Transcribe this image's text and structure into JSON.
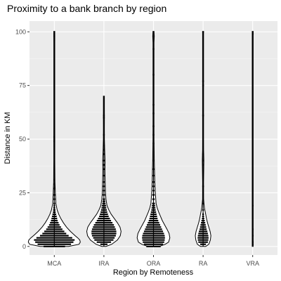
{
  "chart_data": {
    "type": "violin",
    "title": "Proximity to a bank branch by region",
    "xlabel": "Region by Remoteness",
    "ylabel": "Distance in KM",
    "categories": [
      "MCA",
      "IRA",
      "ORA",
      "RA",
      "VRA"
    ],
    "y_ticks": [
      0,
      25,
      50,
      75,
      100
    ],
    "y_tick_labels": [
      "0",
      "25",
      "50",
      "75",
      "100"
    ],
    "ylim": [
      -4,
      105
    ],
    "grid": true,
    "legend": "none",
    "colors": {
      "panel": "#ebebeb",
      "grid_major": "#ffffff",
      "grid_minor": "#f5f5f5",
      "violin_fill": "#ffffff",
      "outline": "#000000",
      "dots": "#000000",
      "tick_text": "#4d4d4d"
    },
    "series": [
      {
        "category": "MCA",
        "max": 100,
        "density": [
          [
            0,
            0.55
          ],
          [
            1,
            0.95
          ],
          [
            2,
            1.0
          ],
          [
            3,
            0.98
          ],
          [
            4,
            0.9
          ],
          [
            5,
            0.8
          ],
          [
            7,
            0.62
          ],
          [
            9,
            0.47
          ],
          [
            11,
            0.35
          ],
          [
            13,
            0.25
          ],
          [
            15,
            0.17
          ],
          [
            17,
            0.11
          ],
          [
            20,
            0.06
          ],
          [
            25,
            0.04
          ],
          [
            30,
            0.025
          ],
          [
            40,
            0.015
          ],
          [
            50,
            0.02
          ],
          [
            60,
            0.01
          ],
          [
            80,
            0.01
          ],
          [
            95,
            0.01
          ],
          [
            98,
            0.02
          ],
          [
            100,
            0.01
          ]
        ],
        "dot_bins": [
          [
            0,
            0.45
          ],
          [
            1,
            0.7
          ],
          [
            2,
            0.8
          ],
          [
            3,
            0.85
          ],
          [
            4,
            0.75
          ],
          [
            5,
            0.6
          ],
          [
            6,
            0.5
          ],
          [
            7,
            0.42
          ],
          [
            8,
            0.34
          ],
          [
            9,
            0.28
          ],
          [
            10,
            0.22
          ],
          [
            11,
            0.18
          ],
          [
            12,
            0.14
          ],
          [
            13,
            0.12
          ],
          [
            14,
            0.1
          ],
          [
            15,
            0.08
          ],
          [
            16,
            0.06
          ],
          [
            17,
            0.05
          ],
          [
            18,
            0.04
          ],
          [
            19,
            0.03
          ],
          [
            20,
            0.03
          ],
          [
            22,
            0.02
          ],
          [
            24,
            0.02
          ],
          [
            27,
            0.02
          ],
          [
            29,
            0.03
          ],
          [
            31,
            0.02
          ],
          [
            49,
            0.02
          ],
          [
            51,
            0.02
          ],
          [
            98,
            0.02
          ],
          [
            99,
            0.03
          ],
          [
            100,
            0.02
          ]
        ]
      },
      {
        "category": "IRA",
        "max": 70,
        "density": [
          [
            0,
            0.08
          ],
          [
            1,
            0.3
          ],
          [
            3,
            0.52
          ],
          [
            5,
            0.63
          ],
          [
            7,
            0.66
          ],
          [
            9,
            0.62
          ],
          [
            11,
            0.52
          ],
          [
            13,
            0.4
          ],
          [
            15,
            0.28
          ],
          [
            17,
            0.19
          ],
          [
            19,
            0.12
          ],
          [
            22,
            0.08
          ],
          [
            25,
            0.06
          ],
          [
            30,
            0.05
          ],
          [
            35,
            0.04
          ],
          [
            40,
            0.045
          ],
          [
            45,
            0.03
          ],
          [
            50,
            0.02
          ],
          [
            55,
            0.015
          ],
          [
            60,
            0.02
          ],
          [
            65,
            0.01
          ],
          [
            70,
            0.005
          ]
        ],
        "dot_bins": [
          [
            1,
            0.15
          ],
          [
            2,
            0.3
          ],
          [
            3,
            0.4
          ],
          [
            4,
            0.45
          ],
          [
            5,
            0.5
          ],
          [
            6,
            0.52
          ],
          [
            7,
            0.52
          ],
          [
            8,
            0.5
          ],
          [
            9,
            0.46
          ],
          [
            10,
            0.42
          ],
          [
            11,
            0.36
          ],
          [
            12,
            0.3
          ],
          [
            13,
            0.25
          ],
          [
            14,
            0.2
          ],
          [
            15,
            0.17
          ],
          [
            16,
            0.14
          ],
          [
            17,
            0.12
          ],
          [
            18,
            0.1
          ],
          [
            19,
            0.09
          ],
          [
            20,
            0.07
          ],
          [
            21,
            0.06
          ],
          [
            22,
            0.05
          ],
          [
            24,
            0.05
          ],
          [
            26,
            0.04
          ],
          [
            28,
            0.04
          ],
          [
            30,
            0.03
          ],
          [
            33,
            0.03
          ],
          [
            36,
            0.03
          ],
          [
            38,
            0.04
          ],
          [
            40,
            0.04
          ],
          [
            43,
            0.03
          ],
          [
            45,
            0.03
          ],
          [
            47,
            0.02
          ],
          [
            52,
            0.02
          ],
          [
            60,
            0.03
          ],
          [
            61,
            0.02
          ]
        ]
      },
      {
        "category": "ORA",
        "max": 100,
        "density": [
          [
            0,
            0.22
          ],
          [
            1,
            0.45
          ],
          [
            2,
            0.58
          ],
          [
            4,
            0.63
          ],
          [
            6,
            0.6
          ],
          [
            8,
            0.52
          ],
          [
            10,
            0.43
          ],
          [
            12,
            0.34
          ],
          [
            14,
            0.27
          ],
          [
            16,
            0.2
          ],
          [
            18,
            0.14
          ],
          [
            20,
            0.1
          ],
          [
            25,
            0.07
          ],
          [
            30,
            0.05
          ],
          [
            35,
            0.04
          ],
          [
            40,
            0.03
          ],
          [
            50,
            0.02
          ],
          [
            60,
            0.015
          ],
          [
            80,
            0.01
          ],
          [
            95,
            0.01
          ],
          [
            98,
            0.03
          ],
          [
            100,
            0.015
          ]
        ],
        "dot_bins": [
          [
            0,
            0.3
          ],
          [
            1,
            0.4
          ],
          [
            2,
            0.45
          ],
          [
            3,
            0.47
          ],
          [
            4,
            0.48
          ],
          [
            5,
            0.47
          ],
          [
            6,
            0.44
          ],
          [
            7,
            0.4
          ],
          [
            8,
            0.36
          ],
          [
            9,
            0.32
          ],
          [
            10,
            0.28
          ],
          [
            11,
            0.24
          ],
          [
            12,
            0.2
          ],
          [
            13,
            0.17
          ],
          [
            14,
            0.15
          ],
          [
            15,
            0.13
          ],
          [
            16,
            0.11
          ],
          [
            17,
            0.09
          ],
          [
            18,
            0.08
          ],
          [
            19,
            0.07
          ],
          [
            20,
            0.06
          ],
          [
            22,
            0.05
          ],
          [
            24,
            0.05
          ],
          [
            26,
            0.04
          ],
          [
            28,
            0.04
          ],
          [
            30,
            0.04
          ],
          [
            33,
            0.03
          ],
          [
            36,
            0.03
          ],
          [
            40,
            0.03
          ],
          [
            44,
            0.02
          ],
          [
            48,
            0.02
          ],
          [
            52,
            0.02
          ],
          [
            56,
            0.02
          ],
          [
            62,
            0.02
          ],
          [
            66,
            0.02
          ],
          [
            80,
            0.02
          ],
          [
            92,
            0.02
          ],
          [
            98,
            0.03
          ],
          [
            99,
            0.03
          ],
          [
            100,
            0.03
          ]
        ]
      },
      {
        "category": "RA",
        "max": 100,
        "density": [
          [
            0,
            0.1
          ],
          [
            1,
            0.22
          ],
          [
            3,
            0.28
          ],
          [
            5,
            0.3
          ],
          [
            7,
            0.27
          ],
          [
            9,
            0.22
          ],
          [
            11,
            0.17
          ],
          [
            13,
            0.13
          ],
          [
            15,
            0.1
          ],
          [
            18,
            0.05
          ],
          [
            22,
            0.02
          ],
          [
            30,
            0.01
          ],
          [
            40,
            0.03
          ],
          [
            45,
            0.02
          ],
          [
            50,
            0.008
          ],
          [
            60,
            0.012
          ],
          [
            70,
            0.006
          ],
          [
            76,
            0.012
          ],
          [
            85,
            0.006
          ],
          [
            100,
            0.008
          ]
        ],
        "dot_bins": [
          [
            1,
            0.12
          ],
          [
            2,
            0.2
          ],
          [
            3,
            0.22
          ],
          [
            4,
            0.23
          ],
          [
            5,
            0.22
          ],
          [
            6,
            0.2
          ],
          [
            7,
            0.18
          ],
          [
            8,
            0.15
          ],
          [
            9,
            0.13
          ],
          [
            10,
            0.11
          ],
          [
            11,
            0.09
          ],
          [
            12,
            0.07
          ],
          [
            13,
            0.05
          ],
          [
            14,
            0.04
          ],
          [
            15,
            0.03
          ],
          [
            17,
            0.02
          ],
          [
            20,
            0.02
          ],
          [
            28,
            0.02
          ],
          [
            38,
            0.02
          ],
          [
            40,
            0.02
          ],
          [
            43,
            0.02
          ],
          [
            61,
            0.02
          ],
          [
            75,
            0.02
          ],
          [
            77,
            0.02
          ],
          [
            100,
            0.02
          ]
        ]
      },
      {
        "category": "VRA",
        "max": 100,
        "density": [
          [
            0,
            0.012
          ],
          [
            1,
            0.016
          ],
          [
            2,
            0.014
          ],
          [
            5,
            0.008
          ],
          [
            8,
            0.006
          ],
          [
            12,
            0.004
          ],
          [
            19,
            0.005
          ],
          [
            30,
            0.003
          ],
          [
            60,
            0.003
          ],
          [
            99,
            0.012
          ],
          [
            100,
            0.014
          ]
        ],
        "dot_bins": [
          [
            1,
            0.02
          ],
          [
            2,
            0.02
          ],
          [
            5,
            0.02
          ],
          [
            8,
            0.02
          ],
          [
            19,
            0.02
          ],
          [
            99,
            0.03
          ],
          [
            100,
            0.03
          ]
        ]
      }
    ]
  }
}
